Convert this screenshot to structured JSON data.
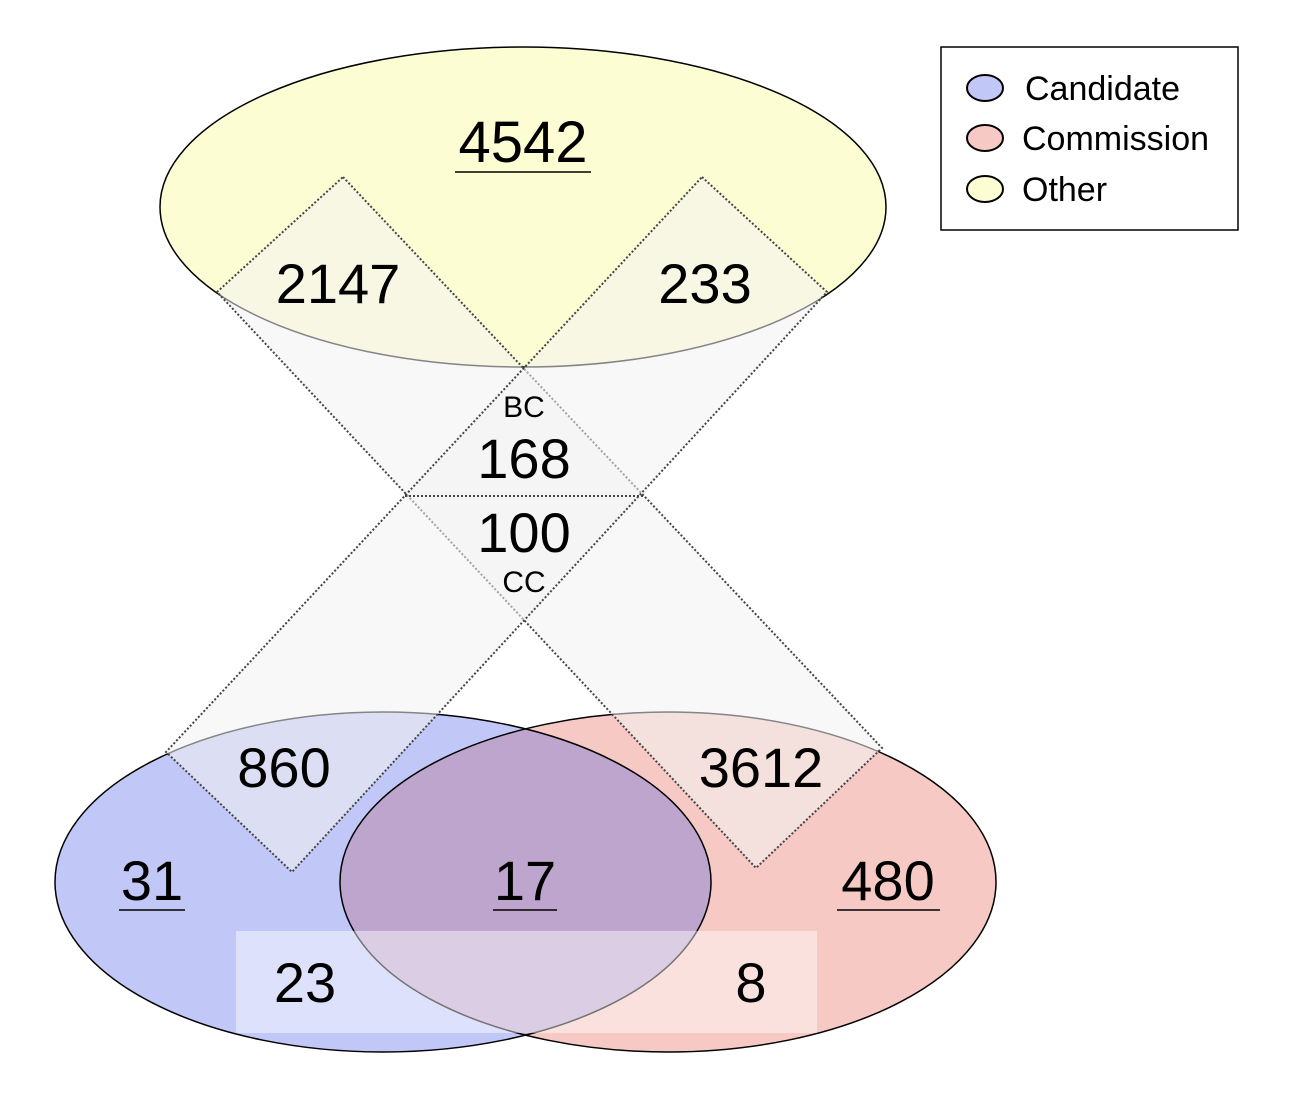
{
  "legend": {
    "items": [
      {
        "label": "Candidate",
        "color": "#c1c8f7"
      },
      {
        "label": "Commission",
        "color": "#f7c9c4"
      },
      {
        "label": "Other",
        "color": "#fdfdd3"
      }
    ]
  },
  "sets": {
    "other_only": "4542",
    "other_left_overlap": "2147",
    "other_right_overlap": "233",
    "bc_label": "BC",
    "bc_value": "168",
    "cc_value": "100",
    "cc_label": "CC",
    "candidate_diamond": "860",
    "commission_diamond": "3612",
    "candidate_only": "31",
    "candidate_commission": "17",
    "commission_only": "480",
    "candidate_band": "23",
    "commission_band": "8"
  },
  "colors": {
    "overlap": "#bea5cd",
    "outline": "#000000",
    "diamond_fill": "#f7f7f7"
  }
}
